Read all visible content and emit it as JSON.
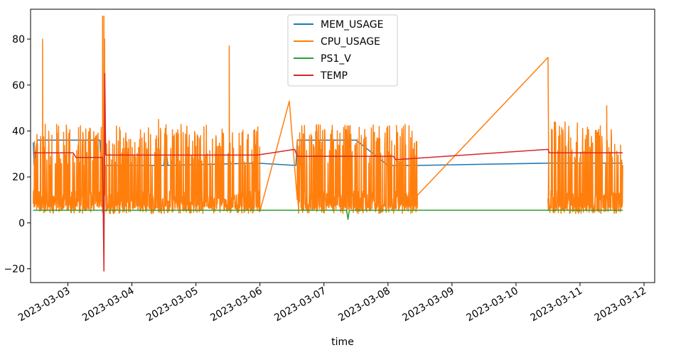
{
  "chart_data": {
    "type": "line",
    "title": "",
    "xlabel": "time",
    "ylabel": "",
    "x_axis_type": "datetime",
    "xlim": [
      "2023-03-02T10:00",
      "2023-03-12T04:00"
    ],
    "ylim": [
      -26,
      93
    ],
    "x_ticks": [
      "2023-03-03",
      "2023-03-04",
      "2023-03-05",
      "2023-03-06",
      "2023-03-07",
      "2023-03-08",
      "2023-03-09",
      "2023-03-10",
      "2023-03-11",
      "2023-03-12"
    ],
    "y_ticks": [
      -20,
      0,
      20,
      40,
      60,
      80
    ],
    "grid": false,
    "legend_position": "top-center",
    "series": [
      {
        "name": "MEM_USAGE",
        "color": "#1f77b4",
        "points": [
          [
            "2023-03-02T11:00",
            35
          ],
          [
            "2023-03-02T11:20",
            25
          ],
          [
            "2023-03-02T12:30",
            36
          ],
          [
            "2023-03-03T12:00",
            36
          ],
          [
            "2023-03-03T12:20",
            25
          ],
          [
            "2023-03-04T12:00",
            25
          ],
          [
            "2023-03-04T12:30",
            36
          ],
          [
            "2023-03-04T13:30",
            25
          ],
          [
            "2023-03-05T23:00",
            26
          ],
          [
            "2023-03-06T13:30",
            25
          ],
          [
            "2023-03-06T14:00",
            36
          ],
          [
            "2023-03-07T12:00",
            36
          ],
          [
            "2023-03-08T00:00",
            25
          ],
          [
            "2023-03-08T11:00",
            25
          ],
          [
            "2023-03-10T12:00",
            26
          ],
          [
            "2023-03-11T16:00",
            26
          ]
        ]
      },
      {
        "name": "CPU_USAGE",
        "color": "#ff7f0e",
        "segments": [
          {
            "start": "2023-03-02T11:00",
            "end": "2023-03-06T00:00",
            "low": 4,
            "high": 43,
            "base": 10
          },
          {
            "start": "2023-03-06T14:00",
            "end": "2023-03-08T11:00",
            "low": 4,
            "high": 43,
            "base": 10
          },
          {
            "start": "2023-03-10T12:00",
            "end": "2023-03-11T16:00",
            "low": 4,
            "high": 44,
            "base": 10
          }
        ],
        "spikes": [
          [
            "2023-03-02T14:30",
            80
          ],
          [
            "2023-03-03T13:00",
            90
          ],
          [
            "2023-03-03T13:30",
            90
          ],
          [
            "2023-03-03T13:45",
            80
          ],
          [
            "2023-03-04T10:00",
            45
          ],
          [
            "2023-03-05T12:30",
            77
          ],
          [
            "2023-03-11T10:00",
            51
          ]
        ],
        "connectors": [
          [
            [
              "2023-03-06T00:00",
              5
            ],
            [
              "2023-03-06T11:00",
              53
            ],
            [
              "2023-03-06T14:00",
              10
            ]
          ],
          [
            [
              "2023-03-08T11:00",
              12
            ],
            [
              "2023-03-10T12:00",
              72
            ],
            [
              "2023-03-10T12:20",
              12
            ]
          ]
        ]
      },
      {
        "name": "PS1_V",
        "color": "#2ca02c",
        "points": [
          [
            "2023-03-02T11:00",
            5.5
          ],
          [
            "2023-03-07T08:30",
            5.5
          ],
          [
            "2023-03-07T09:00",
            1.5
          ],
          [
            "2023-03-07T09:30",
            5.5
          ],
          [
            "2023-03-11T16:00",
            5.5
          ]
        ]
      },
      {
        "name": "TEMP",
        "color": "#d62728",
        "points": [
          [
            "2023-03-02T11:00",
            30.5
          ],
          [
            "2023-03-03T02:00",
            30.5
          ],
          [
            "2023-03-03T03:00",
            28.5
          ],
          [
            "2023-03-03T13:00",
            28.5
          ],
          [
            "2023-03-03T13:30",
            -21
          ],
          [
            "2023-03-03T13:50",
            65
          ],
          [
            "2023-03-03T14:10",
            29.5
          ],
          [
            "2023-03-05T23:00",
            29.5
          ],
          [
            "2023-03-06T13:00",
            32
          ],
          [
            "2023-03-06T14:00",
            29
          ],
          [
            "2023-03-08T02:00",
            29
          ],
          [
            "2023-03-08T03:00",
            27.5
          ],
          [
            "2023-03-10T12:00",
            32
          ],
          [
            "2023-03-10T12:30",
            30.5
          ],
          [
            "2023-03-11T16:00",
            30.5
          ]
        ]
      }
    ]
  }
}
